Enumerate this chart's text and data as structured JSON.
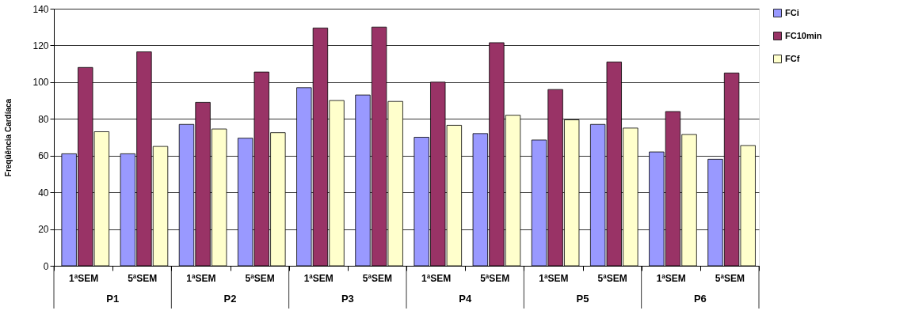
{
  "chart_data": {
    "type": "bar",
    "ylabel": "Freqüência Cardíaca",
    "categories": [
      "1ªSEM",
      "5ªSEM",
      "1ªSEM",
      "5ªSEM",
      "1ªSEM",
      "5ªSEM",
      "1ªSEM",
      "5ªSEM",
      "1ªSEM",
      "5ªSEM",
      "1ªSEM",
      "5ªSEM"
    ],
    "annotations": [
      "P1",
      "P2",
      "P3",
      "P4",
      "P5",
      "P6"
    ],
    "series": [
      {
        "name": "FCi",
        "color": "#9999ff",
        "values": [
          61,
          61,
          77,
          69.5,
          97,
          93,
          70,
          72,
          68.5,
          77,
          62,
          58
        ]
      },
      {
        "name": "FC10min",
        "color": "#993366",
        "values": [
          108,
          116.5,
          89,
          105.5,
          129.5,
          130,
          100,
          121.5,
          96,
          111,
          84,
          105
        ]
      },
      {
        "name": "FCf",
        "color": "#ffffcc",
        "values": [
          73,
          65,
          74.5,
          72.5,
          90,
          89.5,
          76.5,
          82,
          79.5,
          75,
          71.5,
          65.5
        ]
      }
    ],
    "ylim": [
      0,
      140
    ],
    "yticks": [
      0,
      20,
      40,
      60,
      80,
      100,
      120,
      140
    ],
    "grid": "y",
    "legend": "top right"
  }
}
